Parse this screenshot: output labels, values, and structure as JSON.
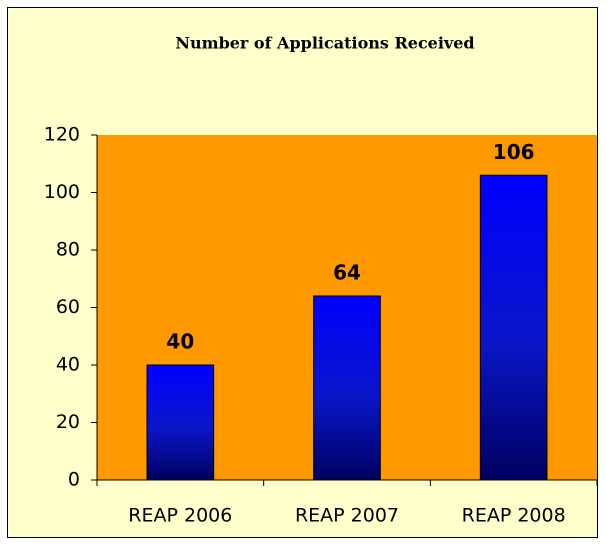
{
  "chart_data": {
    "type": "bar",
    "title": "Number of Applications Received",
    "categories": [
      "REAP 2006",
      "REAP 2007",
      "REAP 2008"
    ],
    "values": [
      40,
      64,
      106
    ],
    "color": "#0000ff",
    "plot_background": "#ff9900",
    "background": "#ffffcc",
    "ylim": [
      0,
      120
    ],
    "yticks": [
      0,
      20,
      40,
      60,
      80,
      100,
      120
    ],
    "grid": false
  }
}
